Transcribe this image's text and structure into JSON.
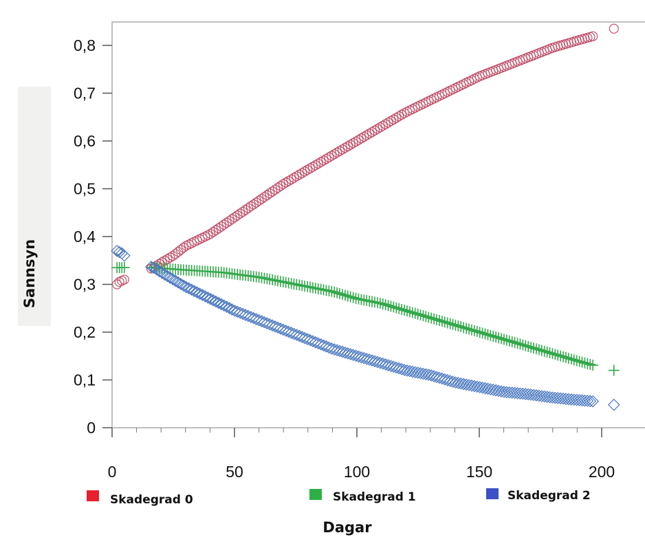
{
  "chart_data": {
    "type": "scatter",
    "title": "",
    "xlabel": "Dagar",
    "ylabel": "Sannsyn",
    "xlim": [
      0,
      205
    ],
    "ylim": [
      0,
      0.85
    ],
    "x_ticks": [
      0,
      50,
      100,
      150,
      200
    ],
    "x_tick_labels": [
      "0",
      "50",
      "100",
      "150",
      "200"
    ],
    "y_ticks": [
      0,
      0.1,
      0.2,
      0.3,
      0.4,
      0.5,
      0.6,
      0.7,
      0.8
    ],
    "y_tick_labels": [
      "0",
      "0,1",
      "0,2",
      "0,3",
      "0,4",
      "0,5",
      "0,6",
      "0,7",
      "0,8"
    ],
    "grid": false,
    "legend_position": "bottom",
    "series": [
      {
        "name": "Skadegrad 0",
        "marker": "circle",
        "color": "#c0506a",
        "legend_color": "#e8202e",
        "x_range": [
          2,
          205
        ],
        "x": [
          2,
          3,
          5,
          17,
          20,
          25,
          30,
          40,
          50,
          60,
          70,
          80,
          90,
          100,
          110,
          120,
          130,
          140,
          150,
          160,
          170,
          180,
          190,
          197,
          205
        ],
        "values": [
          0.3,
          0.305,
          0.31,
          0.335,
          0.345,
          0.36,
          0.38,
          0.405,
          0.44,
          0.475,
          0.51,
          0.54,
          0.57,
          0.6,
          0.63,
          0.66,
          0.685,
          0.71,
          0.735,
          0.755,
          0.775,
          0.795,
          0.81,
          0.82,
          0.835
        ]
      },
      {
        "name": "Skadegrad 1",
        "marker": "plus",
        "color": "#33a84a",
        "legend_color": "#2eb046",
        "x_range": [
          2,
          205
        ],
        "x": [
          2,
          5,
          17,
          30,
          45,
          60,
          75,
          90,
          100,
          110,
          120,
          130,
          140,
          150,
          160,
          170,
          180,
          190,
          197,
          205
        ],
        "values": [
          0.335,
          0.335,
          0.335,
          0.33,
          0.325,
          0.315,
          0.3,
          0.285,
          0.27,
          0.26,
          0.245,
          0.23,
          0.215,
          0.2,
          0.185,
          0.17,
          0.155,
          0.14,
          0.13,
          0.12
        ]
      },
      {
        "name": "Skadegrad 2",
        "marker": "diamond",
        "color": "#4a78c0",
        "legend_color": "#3c50c8",
        "x_range": [
          2,
          205
        ],
        "x": [
          2,
          4,
          6,
          17,
          20,
          30,
          40,
          50,
          60,
          70,
          80,
          90,
          100,
          110,
          120,
          130,
          140,
          150,
          160,
          170,
          180,
          190,
          197,
          205
        ],
        "values": [
          0.37,
          0.365,
          0.355,
          0.335,
          0.325,
          0.295,
          0.27,
          0.245,
          0.225,
          0.205,
          0.185,
          0.165,
          0.15,
          0.135,
          0.12,
          0.11,
          0.095,
          0.085,
          0.075,
          0.07,
          0.063,
          0.058,
          0.055,
          0.048
        ]
      }
    ]
  }
}
